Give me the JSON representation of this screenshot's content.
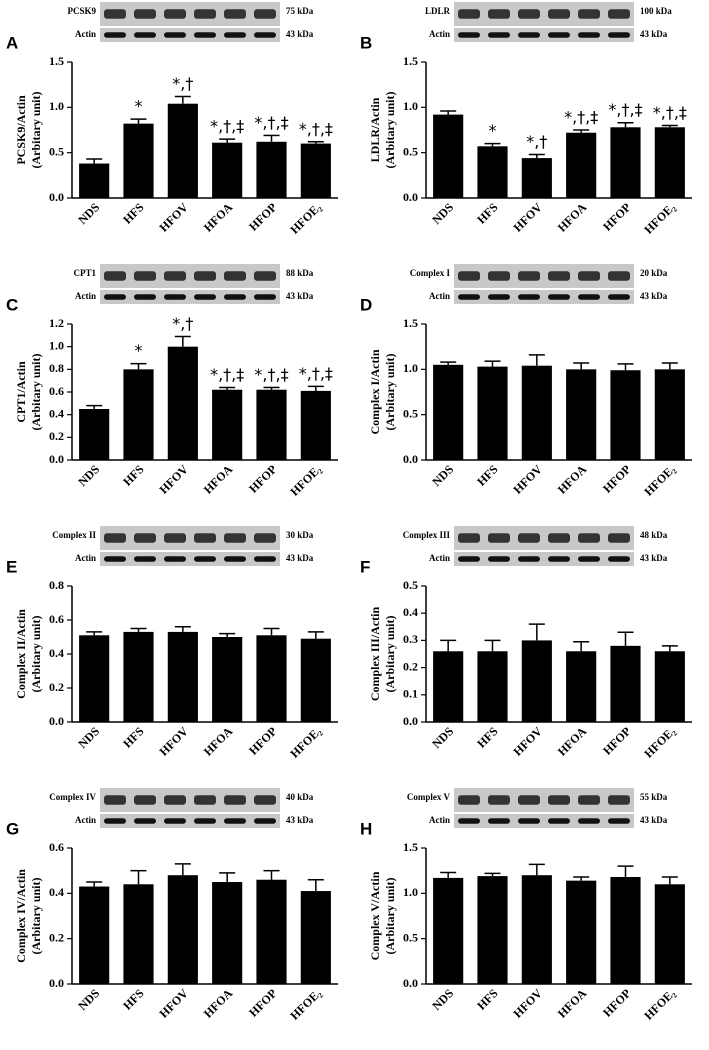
{
  "chart_data": [
    {
      "type": "bar",
      "panel": "A",
      "blot": {
        "protein": "PCSK9",
        "protein_kda": "75 kDa",
        "control": "Actin",
        "control_kda": "43 kDa"
      },
      "y_label": [
        "PCSK9/Actin",
        "(Arbitary unit)"
      ],
      "categories": [
        "NDS",
        "HFS",
        "HFOV",
        "HFOA",
        "HFOP",
        "HFOE₂"
      ],
      "values": [
        0.38,
        0.82,
        1.04,
        0.61,
        0.62,
        0.6
      ],
      "errors": [
        0.05,
        0.05,
        0.08,
        0.04,
        0.07,
        0.02
      ],
      "significance": [
        null,
        "*",
        "*,†",
        "*,†,‡",
        "*,†,‡",
        "*,†,‡"
      ],
      "color": "#000000",
      "ylim": [
        0,
        1.5
      ],
      "yticks": [
        {
          "value": 0,
          "label": "0.0"
        },
        0.5,
        {
          "value": 1,
          "label": "1.0"
        },
        1.5
      ]
    },
    {
      "type": "bar",
      "panel": "B",
      "blot": {
        "protein": "LDLR",
        "protein_kda": "100 kDa",
        "control": "Actin",
        "control_kda": "43 kDa"
      },
      "y_label": [
        "LDLR/Actin",
        "(Arbitary unit)"
      ],
      "categories": [
        "NDS",
        "HFS",
        "HFOV",
        "HFOA",
        "HFOP",
        "HFOE₂"
      ],
      "values": [
        0.92,
        0.57,
        0.44,
        0.72,
        0.78,
        0.78
      ],
      "errors": [
        0.04,
        0.03,
        0.04,
        0.03,
        0.05,
        0.02
      ],
      "significance": [
        null,
        "*",
        "*,†",
        "*,†,‡",
        "*,†,‡",
        "*,†,‡"
      ],
      "color": "#000000",
      "ylim": [
        0,
        1.5
      ],
      "yticks": [
        {
          "value": 0,
          "label": "0.0"
        },
        0.5,
        {
          "value": 1,
          "label": "1.0"
        },
        1.5
      ]
    },
    {
      "type": "bar",
      "panel": "C",
      "blot": {
        "protein": "CPT1",
        "protein_kda": "88 kDa",
        "control": "Actin",
        "control_kda": "43 kDa"
      },
      "y_label": [
        "CPT1/Actin",
        "(Arbitary unit)"
      ],
      "categories": [
        "NDS",
        "HFS",
        "HFOV",
        "HFOA",
        "HFOP",
        "HFOE₂"
      ],
      "values": [
        0.45,
        0.8,
        1.0,
        0.62,
        0.62,
        0.61
      ],
      "errors": [
        0.03,
        0.05,
        0.09,
        0.02,
        0.02,
        0.04
      ],
      "significance": [
        null,
        "*",
        "*,†",
        "*,†,‡",
        "*,†,‡",
        "*,†,‡"
      ],
      "color": "#000000",
      "ylim": [
        0,
        1.2
      ],
      "yticks": [
        {
          "value": 0,
          "label": "0.0"
        },
        0.2,
        0.4,
        0.6,
        0.8,
        {
          "value": 1,
          "label": "1.0"
        },
        1.2
      ]
    },
    {
      "type": "bar",
      "panel": "D",
      "blot": {
        "protein": "Complex I",
        "protein_kda": "20 kDa",
        "control": "Actin",
        "control_kda": "43 kDa"
      },
      "y_label": [
        "Complex I/Actin",
        "(Arbitary unit)"
      ],
      "categories": [
        "NDS",
        "HFS",
        "HFOV",
        "HFOA",
        "HFOP",
        "HFOE₂"
      ],
      "values": [
        1.05,
        1.03,
        1.04,
        1.0,
        0.99,
        1.0
      ],
      "errors": [
        0.03,
        0.06,
        0.12,
        0.07,
        0.07,
        0.07
      ],
      "color": "#000000",
      "ylim": [
        0,
        1.5
      ],
      "yticks": [
        {
          "value": 0,
          "label": "0.0"
        },
        0.5,
        {
          "value": 1,
          "label": "1.0"
        },
        1.5
      ]
    },
    {
      "type": "bar",
      "panel": "E",
      "blot": {
        "protein": "Complex II",
        "protein_kda": "30 kDa",
        "control": "Actin",
        "control_kda": "43 kDa"
      },
      "y_label": [
        "Complex II/Actin",
        "(Arbitary unit)"
      ],
      "categories": [
        "NDS",
        "HFS",
        "HFOV",
        "HFOA",
        "HFOP",
        "HFOE₂"
      ],
      "values": [
        0.51,
        0.53,
        0.53,
        0.5,
        0.51,
        0.49
      ],
      "errors": [
        0.02,
        0.02,
        0.03,
        0.02,
        0.04,
        0.04
      ],
      "color": "#000000",
      "ylim": [
        0,
        0.8
      ],
      "yticks": [
        {
          "value": 0,
          "label": "0.0"
        },
        0.2,
        0.4,
        0.6,
        0.8
      ]
    },
    {
      "type": "bar",
      "panel": "F",
      "blot": {
        "protein": "Complex III",
        "protein_kda": "48 kDa",
        "control": "Actin",
        "control_kda": "43 kDa"
      },
      "y_label": [
        "Complex III/Actin",
        "(Arbitary unit)"
      ],
      "categories": [
        "NDS",
        "HFS",
        "HFOV",
        "HFOA",
        "HFOP",
        "HFOE₂"
      ],
      "values": [
        0.26,
        0.26,
        0.3,
        0.26,
        0.28,
        0.26
      ],
      "errors": [
        0.04,
        0.04,
        0.06,
        0.035,
        0.05,
        0.02
      ],
      "color": "#000000",
      "ylim": [
        0,
        0.5
      ],
      "yticks": [
        {
          "value": 0,
          "label": "0.0"
        },
        0.1,
        0.2,
        0.3,
        0.4,
        0.5
      ]
    },
    {
      "type": "bar",
      "panel": "G",
      "blot": {
        "protein": "Complex IV",
        "protein_kda": "40 kDa",
        "control": "Actin",
        "control_kda": "43 kDa"
      },
      "y_label": [
        "Complex IV/Actin",
        "(Arbitary unit)"
      ],
      "categories": [
        "NDS",
        "HFS",
        "HFOV",
        "HFOA",
        "HFOP",
        "HFOE₂"
      ],
      "values": [
        0.43,
        0.44,
        0.48,
        0.45,
        0.46,
        0.41
      ],
      "errors": [
        0.02,
        0.06,
        0.05,
        0.04,
        0.04,
        0.05
      ],
      "color": "#000000",
      "ylim": [
        0,
        0.6
      ],
      "yticks": [
        {
          "value": 0,
          "label": "0.0"
        },
        0.2,
        0.4,
        0.6
      ]
    },
    {
      "type": "bar",
      "panel": "H",
      "blot": {
        "protein": "Complex V",
        "protein_kda": "55 kDa",
        "control": "Actin",
        "control_kda": "43 kDa"
      },
      "y_label": [
        "Complex V/Actin",
        "(Arbitary unit)"
      ],
      "categories": [
        "NDS",
        "HFS",
        "HFOV",
        "HFOA",
        "HFOP",
        "HFOE₂"
      ],
      "values": [
        1.17,
        1.19,
        1.2,
        1.14,
        1.18,
        1.1
      ],
      "errors": [
        0.06,
        0.03,
        0.12,
        0.04,
        0.12,
        0.08
      ],
      "color": "#000000",
      "ylim": [
        0,
        1.5
      ],
      "yticks": [
        {
          "value": 0,
          "label": "0.0"
        },
        0.5,
        {
          "value": 1,
          "label": "1.0"
        },
        1.5
      ]
    }
  ]
}
